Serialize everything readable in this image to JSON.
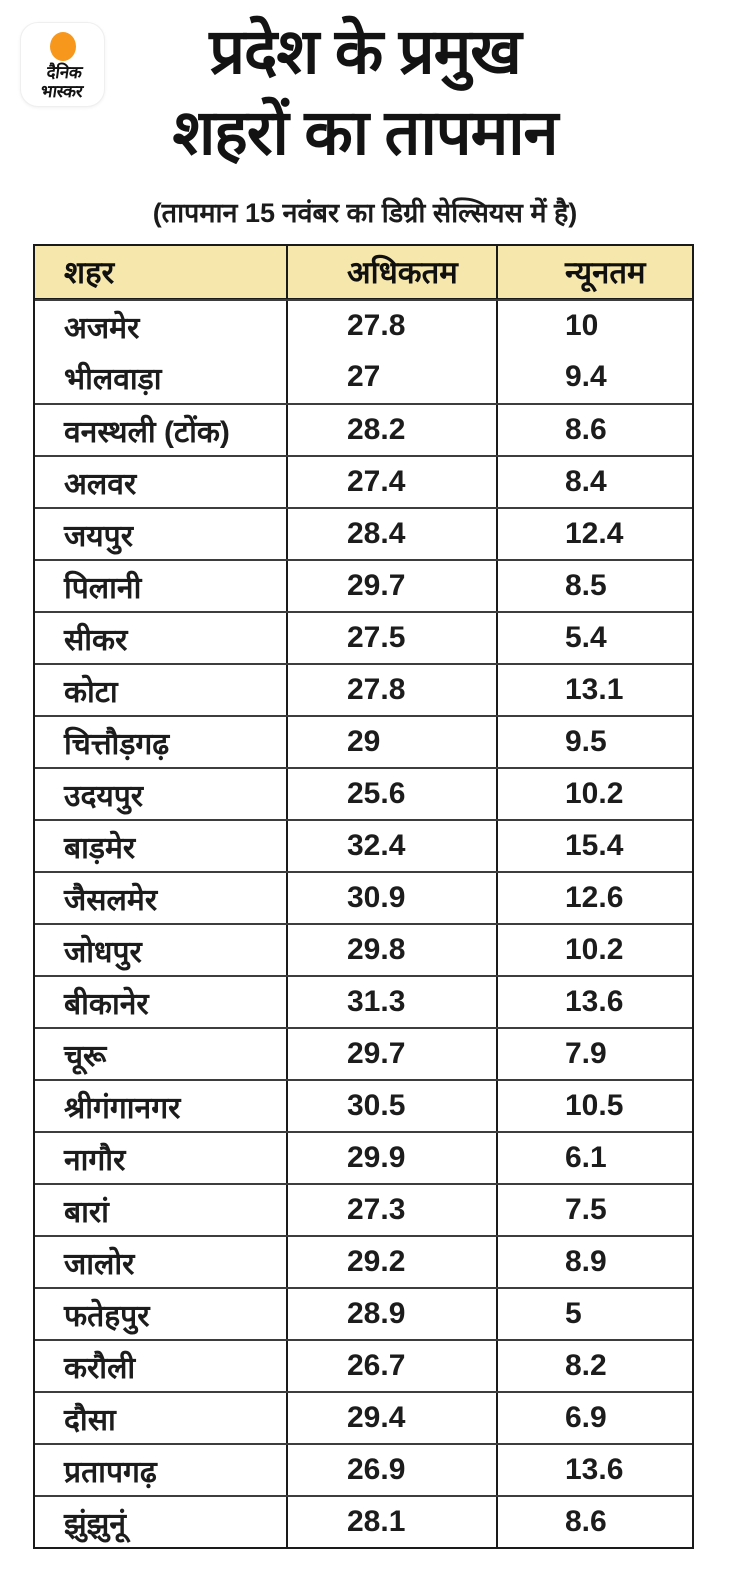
{
  "logo": {
    "name": "दैनिक भास्कर",
    "line1": "दैनिक",
    "line2": "भास्कर"
  },
  "header": {
    "title_line1": "प्रदेश के प्रमुख",
    "title_line2": "शहरों का तापमान",
    "subtitle": "(तापमान 15 नवंबर का डिग्री सेल्सियस में है)"
  },
  "colors": {
    "header_row_bg": "#F6E7AC",
    "logo_sun_orange": "#F7981D",
    "table_border": "#1A1A1A",
    "text": "#141414",
    "background": "#FFFFFF"
  },
  "chart_data": {
    "type": "table",
    "title": "प्रदेश के प्रमुख शहरों का तापमान",
    "subtitle": "(तापमान 15 नवंबर का डिग्री सेल्सियस में है)",
    "unit": "डिग्री सेल्सियस",
    "date": "15 नवंबर",
    "columns": [
      "शहर",
      "अधिकतम",
      "न्यूनतम"
    ],
    "rows": [
      [
        "अजमेर",
        "27.8",
        "10"
      ],
      [
        "भीलवाड़ा",
        "27",
        "9.4"
      ],
      [
        "वनस्थली (टोंक)",
        "28.2",
        "8.6"
      ],
      [
        "अलवर",
        "27.4",
        "8.4"
      ],
      [
        "जयपुर",
        "28.4",
        "12.4"
      ],
      [
        "पिलानी",
        "29.7",
        "8.5"
      ],
      [
        "सीकर",
        "27.5",
        "5.4"
      ],
      [
        "कोटा",
        "27.8",
        "13.1"
      ],
      [
        "चित्तौड़गढ़",
        "29",
        "9.5"
      ],
      [
        "उदयपुर",
        "25.6",
        "10.2"
      ],
      [
        "बाड़मेर",
        "32.4",
        "15.4"
      ],
      [
        "जैसलमेर",
        "30.9",
        "12.6"
      ],
      [
        "जोधपुर",
        "29.8",
        "10.2"
      ],
      [
        "बीकानेर",
        "31.3",
        "13.6"
      ],
      [
        "चूरू",
        "29.7",
        "7.9"
      ],
      [
        "श्रीगंगानगर",
        "30.5",
        "10.5"
      ],
      [
        "नागौर",
        "29.9",
        "6.1"
      ],
      [
        "बारां",
        "27.3",
        "7.5"
      ],
      [
        "जालोर",
        "29.2",
        "8.9"
      ],
      [
        "फतेहपुर",
        "28.9",
        "5"
      ],
      [
        "करौली",
        "26.7",
        "8.2"
      ],
      [
        "दौसा",
        "29.4",
        "6.9"
      ],
      [
        "प्रतापगढ़",
        "26.9",
        "13.6"
      ],
      [
        "झुंझुनूं",
        "28.1",
        "8.6"
      ]
    ]
  }
}
